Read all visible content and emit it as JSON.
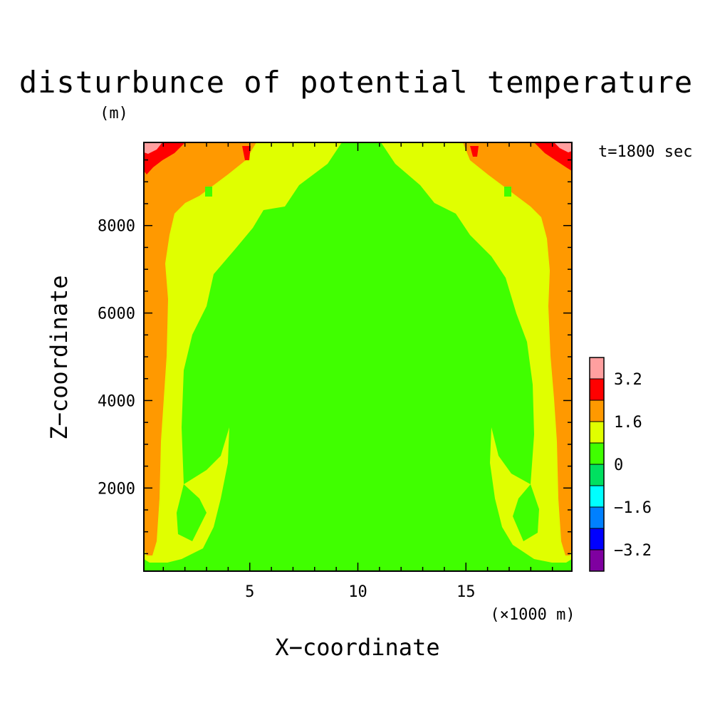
{
  "chart_data": {
    "type": "heatmap",
    "title": "disturbunce of potential temperature",
    "y_units": "(m)",
    "time_label": "t=1800 sec",
    "xlabel": "X−coordinate",
    "ylabel": "Z−coordinate",
    "x_units": "(×1000 m)",
    "xlim": [
      0.1,
      19.9
    ],
    "ylim": [
      100,
      9900
    ],
    "x_ticks": [
      5,
      10,
      15
    ],
    "x_tick_labels": [
      "5",
      "10",
      "15"
    ],
    "y_ticks": [
      2000,
      4000,
      6000,
      8000
    ],
    "y_tick_labels": [
      "2000",
      "4000",
      "6000",
      "8000"
    ],
    "colorbar": {
      "levels": [
        -4.0,
        -3.2,
        -2.4,
        -1.6,
        -0.8,
        0,
        0.8,
        1.6,
        2.4,
        3.2,
        4.0
      ],
      "labels": [
        "3.2",
        "1.6",
        "0",
        "−1.6",
        "−3.2"
      ],
      "label_values": [
        3.2,
        1.6,
        0,
        -1.6,
        -3.2
      ],
      "colors": [
        "#7f00a0",
        "#0000ff",
        "#0080ff",
        "#00ffff",
        "#00e060",
        "#40ff00",
        "#e0ff00",
        "#ff9900",
        "#ff0000",
        "#ff9f9f"
      ]
    },
    "regions": [
      {
        "name": "background",
        "value_range": [
          0,
          0.8
        ]
      },
      {
        "name": "left plume",
        "value_range": [
          0.8,
          1.6
        ]
      },
      {
        "name": "right plume",
        "value_range": [
          0.8,
          1.6
        ]
      },
      {
        "name": "left boundary layer",
        "value_range": [
          1.6,
          2.4
        ]
      },
      {
        "name": "right boundary layer",
        "value_range": [
          1.6,
          2.4
        ]
      },
      {
        "name": "top corners",
        "value_range": [
          2.4,
          4.0
        ]
      }
    ]
  }
}
